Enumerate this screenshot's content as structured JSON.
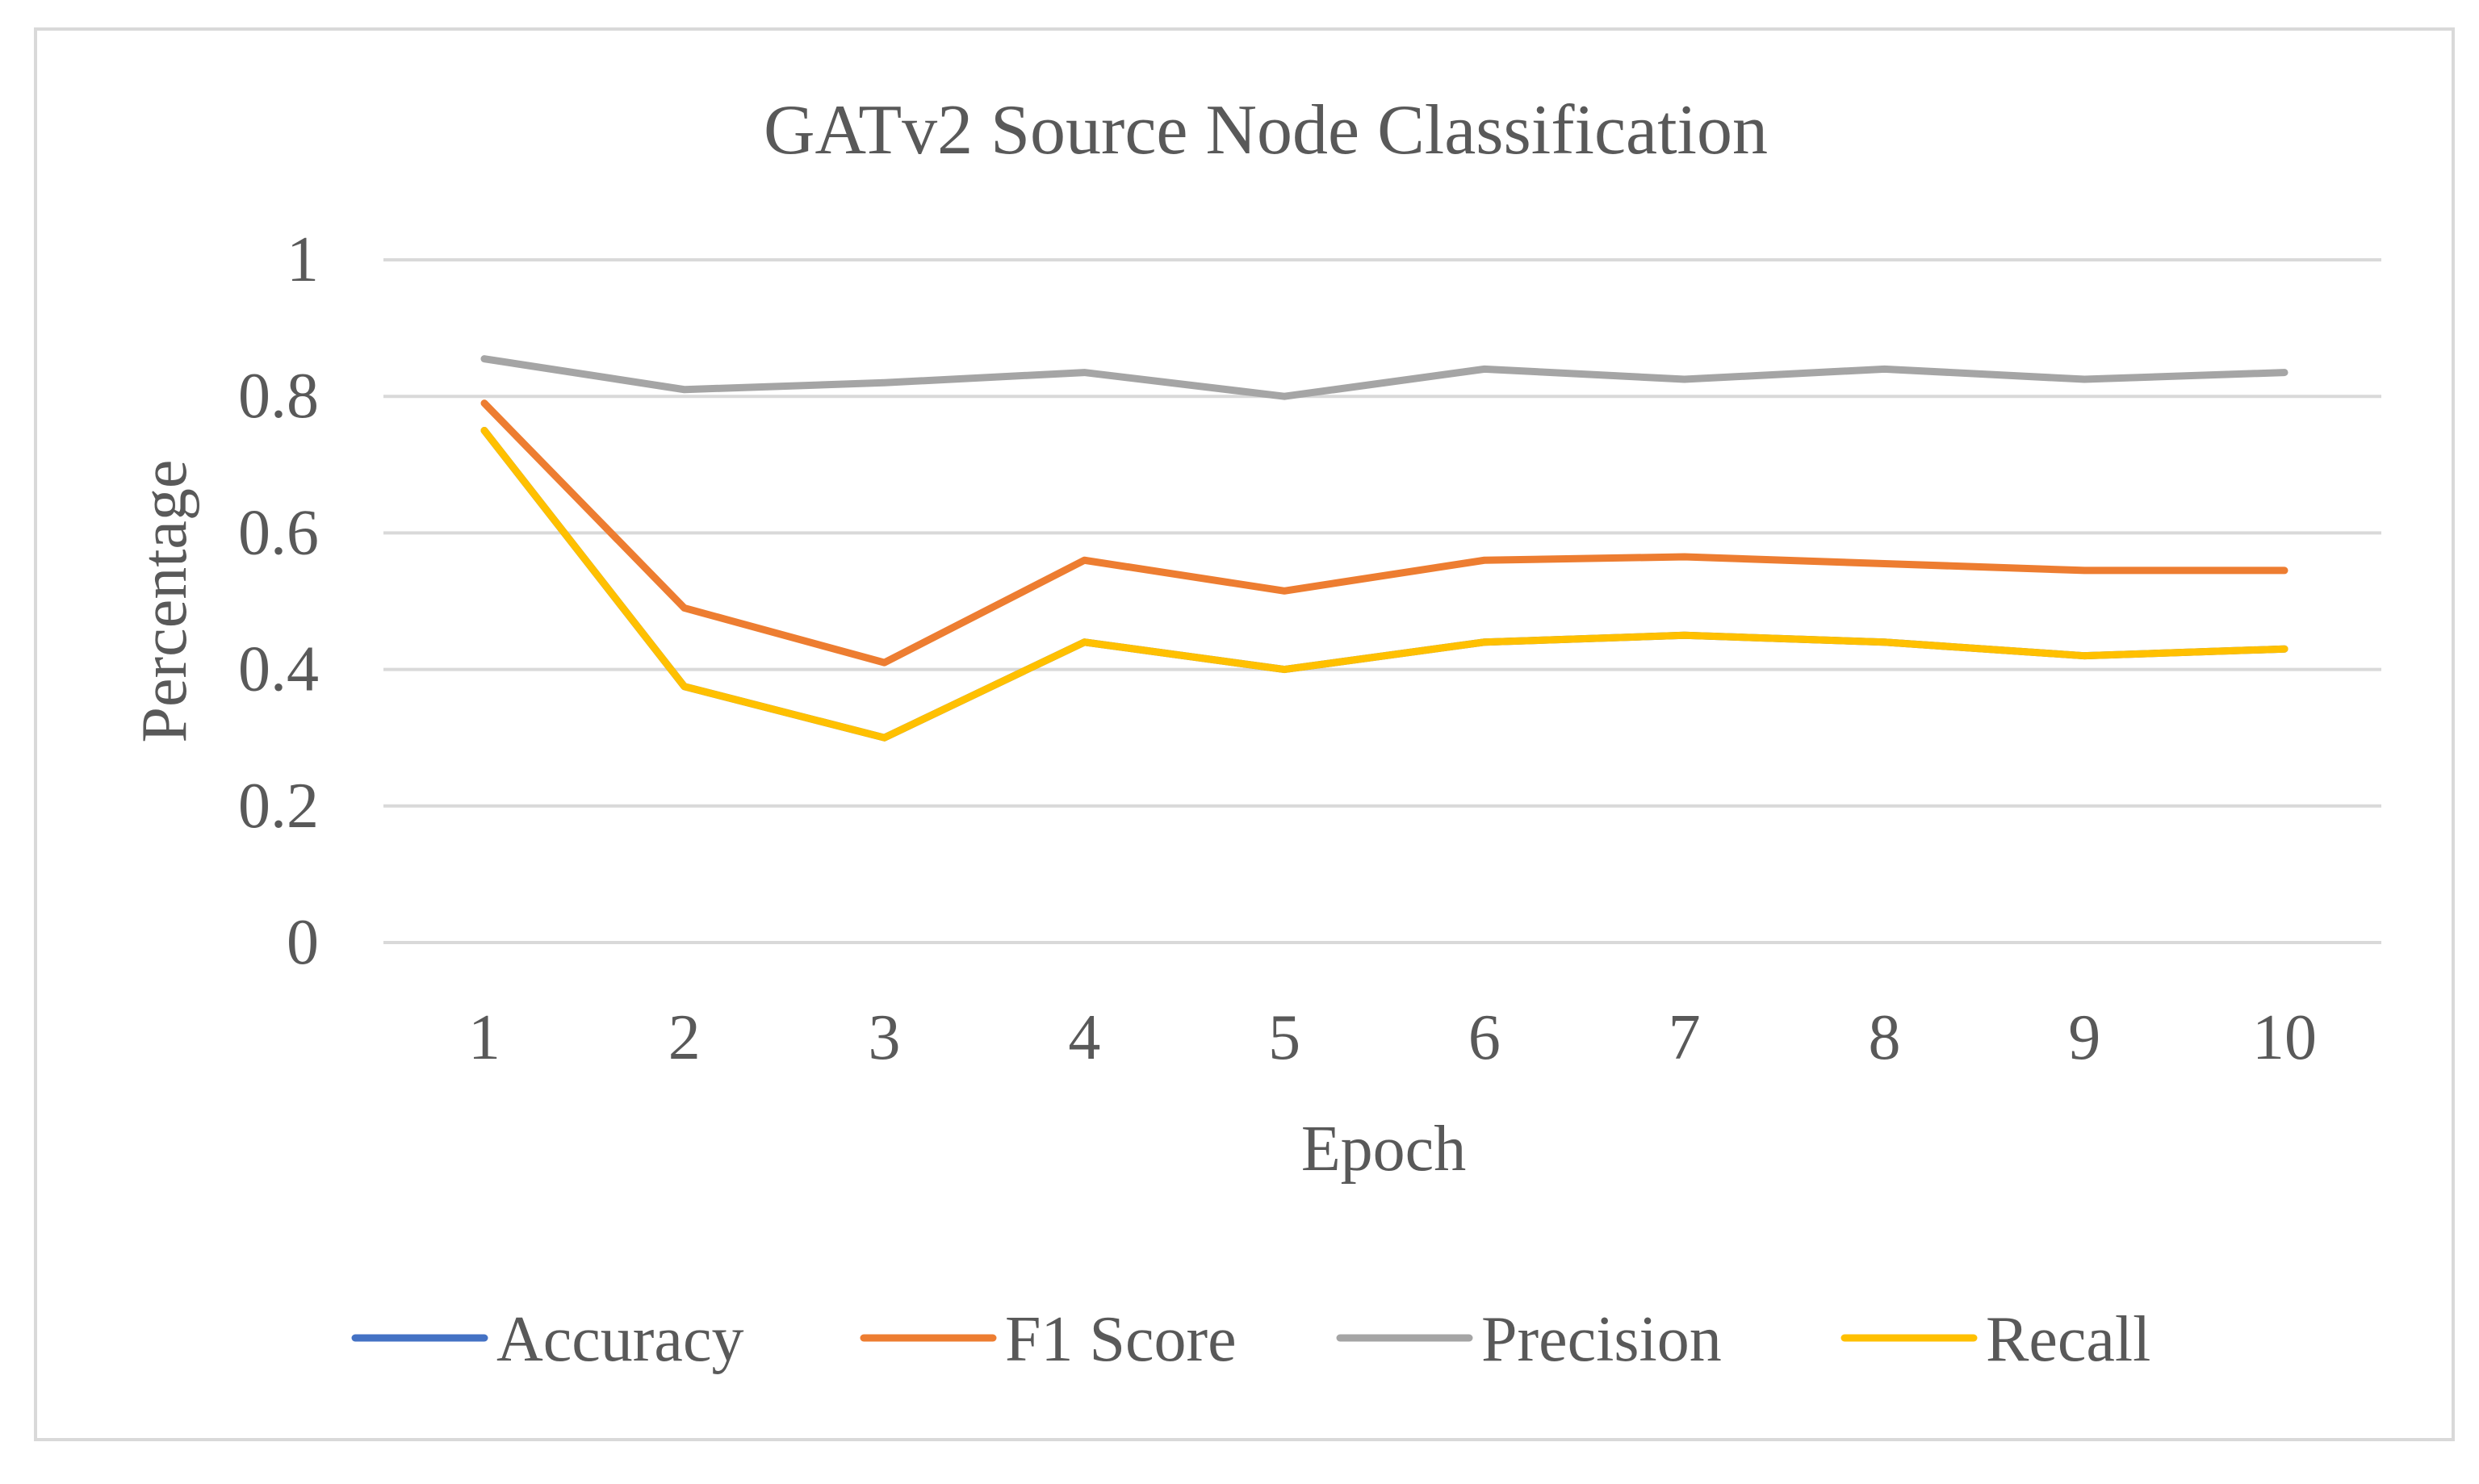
{
  "chart_data": {
    "type": "line",
    "title": "GATv2 Source Node Classification",
    "xlabel": "Epoch",
    "ylabel": "Percentage",
    "categories": [
      "1",
      "2",
      "3",
      "4",
      "5",
      "6",
      "7",
      "8",
      "9",
      "10"
    ],
    "ylim": [
      0,
      1
    ],
    "yticks": [
      "0",
      "0.2",
      "0.4",
      "0.6",
      "0.8",
      "1"
    ],
    "ytick_values": [
      0,
      0.2,
      0.4,
      0.6,
      0.8,
      1
    ],
    "grid": true,
    "legend_position": "bottom",
    "series": [
      {
        "name": "Accuracy",
        "color": "#4472c4",
        "values": [
          0.75,
          0.375,
          0.3,
          0.44,
          0.4,
          0.44,
          0.45,
          0.44,
          0.42,
          0.43
        ]
      },
      {
        "name": "F1 Score",
        "color": "#ed7d31",
        "values": [
          0.79,
          0.49,
          0.41,
          0.56,
          0.515,
          0.56,
          0.565,
          0.555,
          0.545,
          0.545
        ]
      },
      {
        "name": "Precision",
        "color": "#a5a5a5",
        "values": [
          0.855,
          0.81,
          0.82,
          0.835,
          0.8,
          0.84,
          0.825,
          0.84,
          0.825,
          0.835
        ]
      },
      {
        "name": "Recall",
        "color": "#ffc000",
        "values": [
          0.75,
          0.375,
          0.3,
          0.44,
          0.4,
          0.44,
          0.45,
          0.44,
          0.42,
          0.43
        ]
      }
    ]
  }
}
